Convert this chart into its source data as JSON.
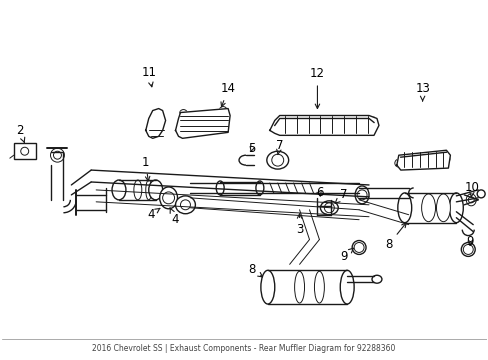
{
  "bg_color": "#ffffff",
  "line_color": "#1a1a1a",
  "text_color": "#000000",
  "fig_width": 4.89,
  "fig_height": 3.6,
  "dpi": 100,
  "footer_text": "2016 Chevrolet SS | Exhaust Components - Rear Muffler Diagram for 92288360",
  "footer_color": "#444444",
  "footer_line_color": "#888888",
  "label_fontsize": 8.5,
  "lw_thin": 0.7,
  "lw_med": 1.0,
  "lw_thick": 1.4
}
